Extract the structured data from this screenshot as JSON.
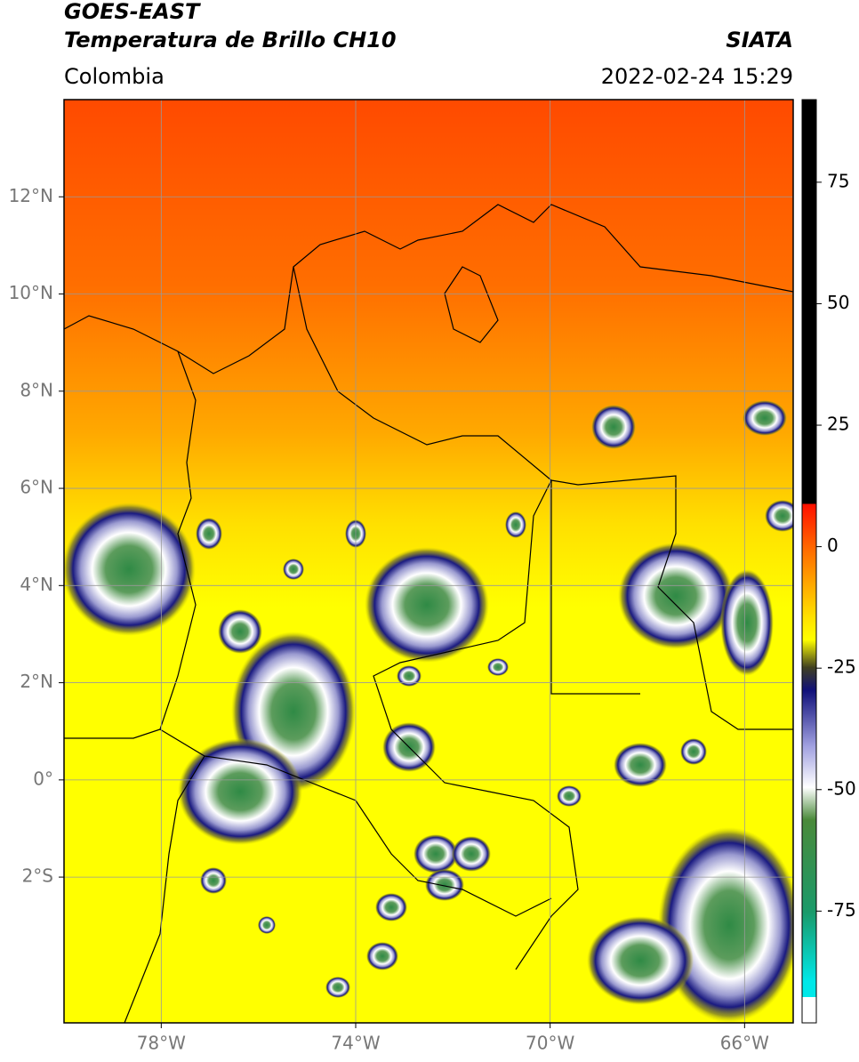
{
  "header": {
    "title": "GOES-EAST",
    "subtitle": "Temperatura de Brillo CH10",
    "source": "SIATA",
    "region": "Colombia",
    "timestamp": "2022-02-24 15:29"
  },
  "map": {
    "lonlim": [
      -80,
      -65
    ],
    "latlim": [
      -5,
      14
    ],
    "lonticks": [
      {
        "value": -78,
        "label": "78°W"
      },
      {
        "value": -74,
        "label": "74°W"
      },
      {
        "value": -70,
        "label": "70°W"
      },
      {
        "value": -66,
        "label": "66°W"
      }
    ],
    "latticks": [
      {
        "value": 12,
        "label": "12°N"
      },
      {
        "value": 10,
        "label": "10°N"
      },
      {
        "value": 8,
        "label": "8°N"
      },
      {
        "value": 6,
        "label": "6°N"
      },
      {
        "value": 4,
        "label": "4°N"
      },
      {
        "value": 2,
        "label": "2°N"
      },
      {
        "value": 0,
        "label": "0°"
      },
      {
        "value": -2,
        "label": "2°S"
      }
    ]
  },
  "colorbar": {
    "lim": [
      -98,
      92
    ],
    "ticks": [
      75,
      50,
      25,
      0,
      -25,
      -50,
      -75
    ]
  }
}
